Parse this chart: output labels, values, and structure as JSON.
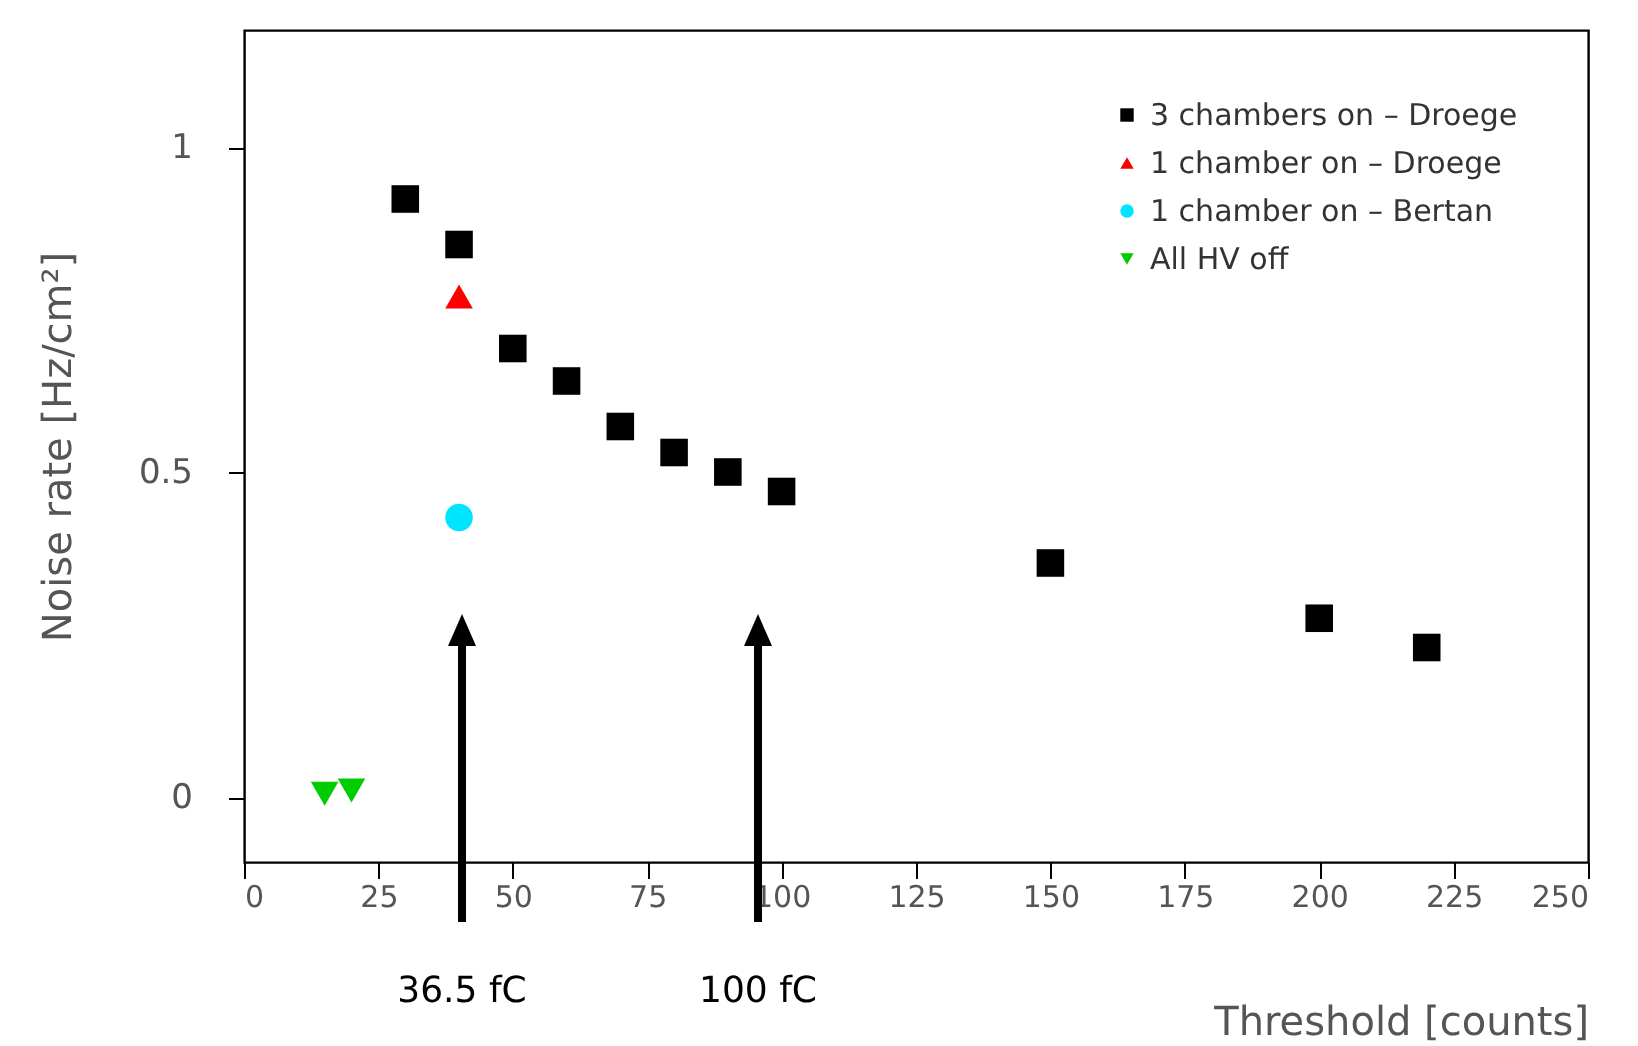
{
  "chart_data": {
    "type": "scatter",
    "xlabel": "Threshold [counts]",
    "ylabel": "Noise rate [Hz/cm²]",
    "xlim": [
      0,
      250
    ],
    "xticks": [
      0,
      25,
      50,
      75,
      100,
      125,
      150,
      175,
      200,
      225,
      250
    ],
    "ylim": [
      -0.1,
      1.18
    ],
    "yticks": [
      0,
      0.5,
      1
    ],
    "grid": false,
    "legend": "top right",
    "series": [
      {
        "name": "3 chambers on – Droege",
        "color": "#000000",
        "marker": "square",
        "x": [
          30,
          40,
          50,
          60,
          70,
          80,
          90,
          100,
          150,
          200,
          220
        ],
        "values": [
          0.92,
          0.85,
          0.69,
          0.64,
          0.57,
          0.53,
          0.5,
          0.47,
          0.36,
          0.275,
          0.23
        ]
      },
      {
        "name": "1 chamber on – Droege",
        "color": "#ff0000",
        "marker": "triangle",
        "x": [
          40
        ],
        "values": [
          0.77
        ]
      },
      {
        "name": "1 chamber on – Bertan",
        "color": "#00e5ff",
        "marker": "circle",
        "x": [
          40
        ],
        "values": [
          0.43
        ]
      },
      {
        "name": "All HV off",
        "color": "#00cc00",
        "marker": "triangle-down",
        "x": [
          15,
          20
        ],
        "values": [
          0.005,
          0.01
        ]
      }
    ],
    "annotations": [
      "36.5 fC",
      "100 fC"
    ]
  }
}
